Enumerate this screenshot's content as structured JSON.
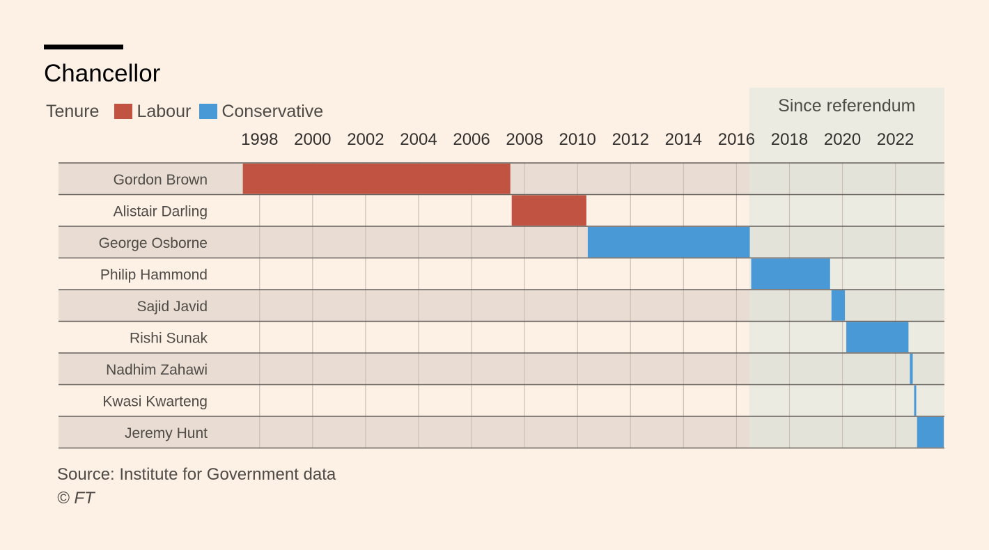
{
  "title": "Chancellor",
  "legend": {
    "label": "Tenure",
    "items": [
      {
        "name": "Labour",
        "color": "#c05342"
      },
      {
        "name": "Conservative",
        "color": "#4a99d7"
      }
    ]
  },
  "annotation": {
    "label": "Since referendum",
    "start": 2016.48,
    "end": 2023.85
  },
  "source": "Source:  Institute for Government data",
  "copyright": "© FT",
  "chart_data": {
    "type": "gantt",
    "title": "Chancellor",
    "xlabel": "",
    "ylabel": "",
    "xlim": [
      1996.35,
      2023.85
    ],
    "x_ticks": [
      1998,
      2000,
      2002,
      2004,
      2006,
      2008,
      2010,
      2012,
      2014,
      2016,
      2018,
      2020,
      2022
    ],
    "grid": true,
    "legend_position": "top-left",
    "series": [
      {
        "name": "Gordon Brown",
        "party": "Labour",
        "start": 1997.34,
        "end": 2007.49
      },
      {
        "name": "Alistair Darling",
        "party": "Labour",
        "start": 2007.49,
        "end": 2010.36
      },
      {
        "name": "George Osborne",
        "party": "Conservative",
        "start": 2010.36,
        "end": 2016.53
      },
      {
        "name": "Philip Hammond",
        "party": "Conservative",
        "start": 2016.53,
        "end": 2019.56
      },
      {
        "name": "Sajid Javid",
        "party": "Conservative",
        "start": 2019.56,
        "end": 2020.12
      },
      {
        "name": "Rishi Sunak",
        "party": "Conservative",
        "start": 2020.12,
        "end": 2022.52
      },
      {
        "name": "Nadhim Zahawi",
        "party": "Conservative",
        "start": 2022.52,
        "end": 2022.68
      },
      {
        "name": "Kwasi Kwarteng",
        "party": "Conservative",
        "start": 2022.68,
        "end": 2022.79
      },
      {
        "name": "Jeremy Hunt",
        "party": "Conservative",
        "start": 2022.79,
        "end": 2023.85
      }
    ]
  }
}
